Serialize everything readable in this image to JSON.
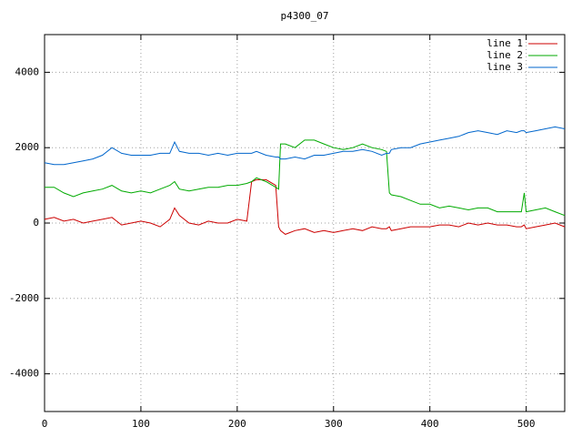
{
  "chart_data": {
    "type": "line",
    "title": "p4300_07",
    "x": [
      0,
      10,
      20,
      30,
      40,
      50,
      60,
      70,
      80,
      90,
      100,
      110,
      120,
      130,
      135,
      140,
      150,
      160,
      170,
      180,
      190,
      200,
      210,
      215,
      220,
      230,
      240,
      243,
      245,
      250,
      260,
      270,
      280,
      290,
      300,
      310,
      320,
      330,
      340,
      350,
      355,
      358,
      360,
      370,
      380,
      390,
      400,
      410,
      420,
      430,
      440,
      450,
      460,
      470,
      480,
      490,
      495,
      498,
      500,
      510,
      520,
      530,
      540
    ],
    "series": [
      {
        "name": "line 1",
        "color": "#cc0000",
        "values": [
          100,
          150,
          50,
          100,
          0,
          50,
          100,
          150,
          -50,
          0,
          50,
          0,
          -100,
          100,
          400,
          200,
          0,
          -50,
          50,
          0,
          0,
          100,
          50,
          1100,
          1150,
          1150,
          1000,
          -100,
          -200,
          -300,
          -200,
          -150,
          -250,
          -200,
          -250,
          -200,
          -150,
          -200,
          -100,
          -150,
          -150,
          -100,
          -200,
          -150,
          -100,
          -100,
          -100,
          -50,
          -50,
          -100,
          0,
          -50,
          0,
          -50,
          -50,
          -100,
          -100,
          -50,
          -150,
          -100,
          -50,
          0,
          -100
        ]
      },
      {
        "name": "line 2",
        "color": "#00aa00",
        "values": [
          950,
          950,
          800,
          700,
          800,
          850,
          900,
          1000,
          850,
          800,
          850,
          800,
          900,
          1000,
          1100,
          900,
          850,
          900,
          950,
          950,
          1000,
          1000,
          1050,
          1100,
          1200,
          1100,
          950,
          900,
          2100,
          2100,
          2000,
          2200,
          2200,
          2100,
          2000,
          1950,
          2000,
          2100,
          2000,
          1950,
          1900,
          800,
          750,
          700,
          600,
          500,
          500,
          400,
          450,
          400,
          350,
          400,
          400,
          300,
          300,
          300,
          300,
          800,
          300,
          350,
          400,
          300,
          200
        ]
      },
      {
        "name": "line 3",
        "color": "#0066cc",
        "values": [
          1600,
          1550,
          1550,
          1600,
          1650,
          1700,
          1800,
          2000,
          1850,
          1800,
          1800,
          1800,
          1850,
          1850,
          2150,
          1900,
          1850,
          1850,
          1800,
          1850,
          1800,
          1850,
          1850,
          1850,
          1900,
          1800,
          1750,
          1750,
          1700,
          1700,
          1750,
          1700,
          1800,
          1800,
          1850,
          1900,
          1900,
          1950,
          1900,
          1800,
          1850,
          1850,
          1950,
          2000,
          2000,
          2100,
          2150,
          2200,
          2250,
          2300,
          2400,
          2450,
          2400,
          2350,
          2450,
          2400,
          2450,
          2450,
          2400,
          2450,
          2500,
          2550,
          2500
        ]
      }
    ],
    "xlim": [
      0,
      540
    ],
    "xticks": [
      0,
      100,
      200,
      300,
      400,
      500
    ],
    "ylim": [
      -5000,
      5000
    ],
    "yticks": [
      -4000,
      -2000,
      0,
      2000,
      4000
    ],
    "grid": true,
    "legend": "top-right"
  }
}
